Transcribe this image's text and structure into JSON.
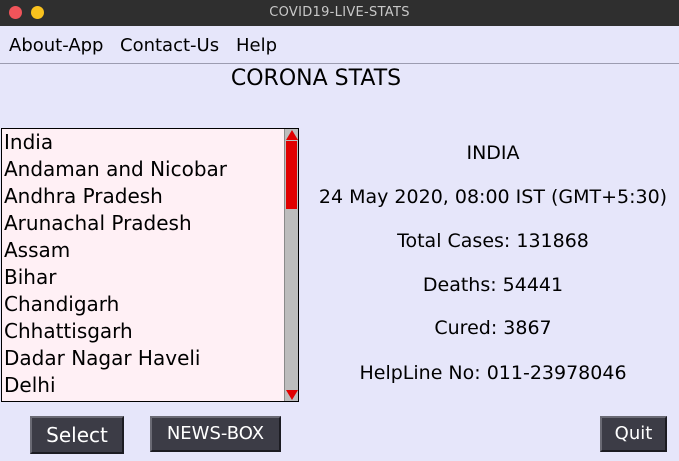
{
  "window": {
    "title": "COVID19-LIVE-STATS"
  },
  "menu": {
    "about": "About-App",
    "contact": "Contact-Us",
    "help": "Help"
  },
  "heading": "CORONA STATS",
  "states": [
    "India",
    "Andaman and Nicobar",
    "Andhra Pradesh",
    "Arunachal Pradesh",
    "Assam",
    "Bihar",
    "Chandigarh",
    "Chhattisgarh",
    "Dadar Nagar Haveli",
    "Delhi"
  ],
  "stats": {
    "region": "INDIA",
    "datetime": "24 May 2020, 08:00 IST (GMT+5:30)",
    "total_cases": "Total Cases: 131868",
    "deaths": "Deaths: 54441",
    "cured": "Cured: 3867",
    "helpline": "HelpLine No: 011-23978046"
  },
  "buttons": {
    "select": "Select",
    "news": "NEWS-BOX",
    "quit": "Quit"
  },
  "colors": {
    "accent": "#e00000",
    "background": "#e6e6fa",
    "listbox": "#fff0f5",
    "button": "#3c3c46"
  }
}
